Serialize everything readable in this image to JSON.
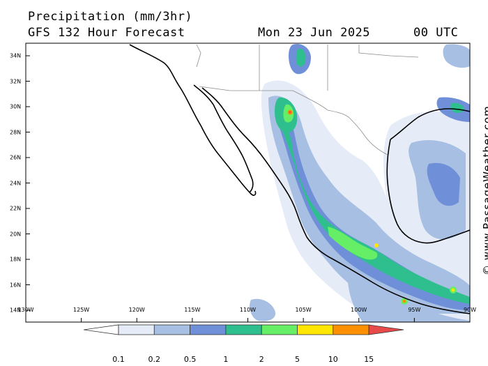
{
  "header": {
    "title": "Precipitation (mm/3hr)",
    "model": "GFS 132 Hour Forecast",
    "date": "Mon 23 Jun 2025",
    "time": "00 UTC"
  },
  "credit": "© www.PassageWeather.com",
  "axes": {
    "x_ticks": [
      "130W",
      "125W",
      "120W",
      "115W",
      "110W",
      "105W",
      "100W",
      "95W",
      "90W"
    ],
    "y_ticks": [
      "34N",
      "32N",
      "30N",
      "28N",
      "26N",
      "24N",
      "22N",
      "20N",
      "18N",
      "16N",
      "14N"
    ]
  },
  "legend": {
    "labels": [
      "0.1",
      "0.2",
      "0.5",
      "1",
      "2",
      "5",
      "10",
      "15"
    ],
    "colors": [
      "#ffffff",
      "#e6ecf7",
      "#a7bfe3",
      "#6f8fd8",
      "#2fbf8f",
      "#66ee66",
      "#ffe600",
      "#ff9000",
      "#e84a4a"
    ]
  }
}
